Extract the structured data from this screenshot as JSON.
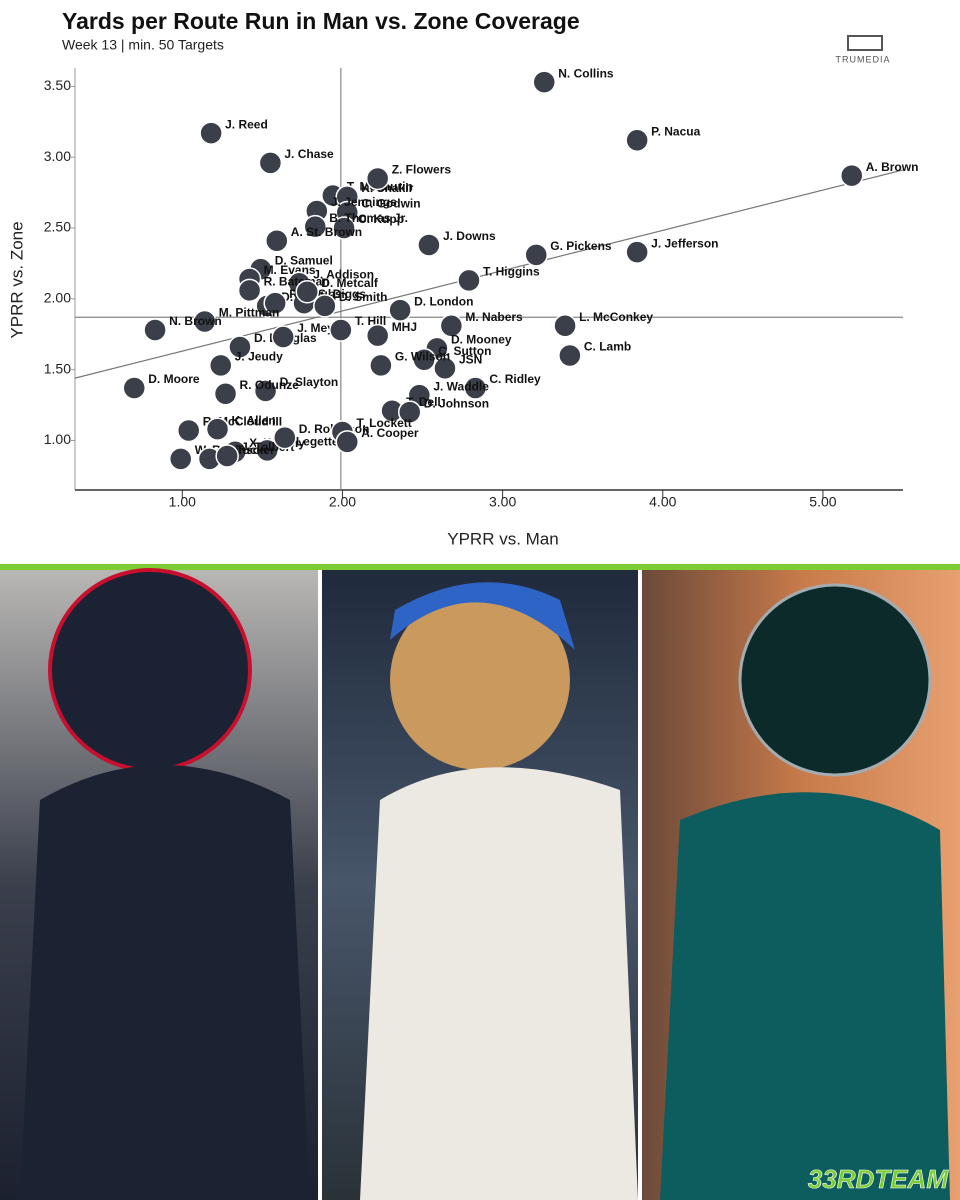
{
  "chart_data": {
    "type": "scatter",
    "title": "Yards per Route Run in Man vs. Zone Coverage",
    "subtitle": "Week 13 | min. 50 Targets",
    "x_label": "YPRR vs. Man",
    "y_label": "YPRR vs. Zone",
    "xlim": [
      0.33,
      5.5
    ],
    "ylim": [
      0.65,
      3.63
    ],
    "xticks": [
      {
        "value": 1,
        "label": "1.00"
      },
      {
        "value": 2,
        "label": "2.00"
      },
      {
        "value": 3,
        "label": "3.00"
      },
      {
        "value": 4,
        "label": "4.00"
      },
      {
        "value": 5,
        "label": "5.00"
      }
    ],
    "yticks": [
      {
        "value": 1,
        "label": "1.00"
      },
      {
        "value": 1.5,
        "label": "1.50"
      },
      {
        "value": 2,
        "label": "2.00"
      },
      {
        "value": 2.5,
        "label": "2.50"
      },
      {
        "value": 3,
        "label": "3.00"
      },
      {
        "value": 3.5,
        "label": "3.50"
      }
    ],
    "reference_lines": {
      "x": 1.99,
      "y": 1.87
    },
    "trend_line": {
      "x": [
        0.33,
        5.5
      ],
      "y": [
        1.44,
        2.91
      ]
    },
    "point_color": "#3b3f4a",
    "labels": [
      "N. Collins",
      "P. Nacua",
      "A. Brown",
      "J. Reed",
      "J. Chase",
      "T. McLaurin",
      "K. Shakir",
      "Z. Flowers",
      "C. Godwin",
      "J. Jennings",
      "C. Kupp",
      "B. Thomas Jr.",
      "A. St. Brown",
      "D. Samuel",
      "M. Evans",
      "J. Addison",
      "D. Adams",
      "S. Diggs",
      "R. Bateman",
      "R. Doubs",
      "M. Pittman",
      "N. Brown",
      "D. Douglas",
      "J. Meyers",
      "D. Metcalf",
      "D. Smith",
      "D. London",
      "T. Hill",
      "MHJ",
      "M. Nabers",
      "D. Mooney",
      "J. Downs",
      "G. Pickens",
      "T. Higgins",
      "J. Jefferson",
      "L. McConkey",
      "C. Lamb",
      "C. Sutton",
      "JSN",
      "G. Wilson",
      "C. Ridley",
      "J. Waddle",
      "T. Dell",
      "D. Johnson",
      "D. Slayton",
      "R. Odunze",
      "J. Jeudy",
      "D. Moore",
      "R. McCloud III",
      "K. Allen",
      "X. Worthy",
      "X. Legette",
      "W. Robinson",
      "T. Tucker",
      "J. Tolbert",
      "D. Robinson",
      "T. Lockett",
      "A. Cooper"
    ],
    "x": [
      3.26,
      3.84,
      5.18,
      1.18,
      1.55,
      1.94,
      2.03,
      2.22,
      2.03,
      1.84,
      2.01,
      1.83,
      1.59,
      1.49,
      1.42,
      1.73,
      1.53,
      1.76,
      1.42,
      1.58,
      1.14,
      0.83,
      1.36,
      1.63,
      1.78,
      1.89,
      2.36,
      1.99,
      2.22,
      2.68,
      2.59,
      2.54,
      3.21,
      2.79,
      3.84,
      3.39,
      3.42,
      2.51,
      2.64,
      2.24,
      2.83,
      2.48,
      2.31,
      2.42,
      1.52,
      1.27,
      1.24,
      0.7,
      1.04,
      1.22,
      1.33,
      1.53,
      0.99,
      1.17,
      1.28,
      1.64,
      2.0,
      2.03
    ],
    "y": [
      3.53,
      3.12,
      2.87,
      3.17,
      2.96,
      2.73,
      2.72,
      2.85,
      2.61,
      2.62,
      2.5,
      2.51,
      2.41,
      2.21,
      2.14,
      2.11,
      1.95,
      1.97,
      2.06,
      1.97,
      1.84,
      1.78,
      1.66,
      1.73,
      2.05,
      1.95,
      1.92,
      1.78,
      1.74,
      1.81,
      1.65,
      2.38,
      2.31,
      2.13,
      2.33,
      1.81,
      1.6,
      1.57,
      1.51,
      1.53,
      1.37,
      1.32,
      1.21,
      1.2,
      1.35,
      1.33,
      1.53,
      1.37,
      1.07,
      1.08,
      0.92,
      0.93,
      0.87,
      0.87,
      0.89,
      1.02,
      1.06,
      0.99
    ]
  },
  "branding": {
    "source": "TRUMEDIA",
    "publisher": "33RDTEAM"
  }
}
